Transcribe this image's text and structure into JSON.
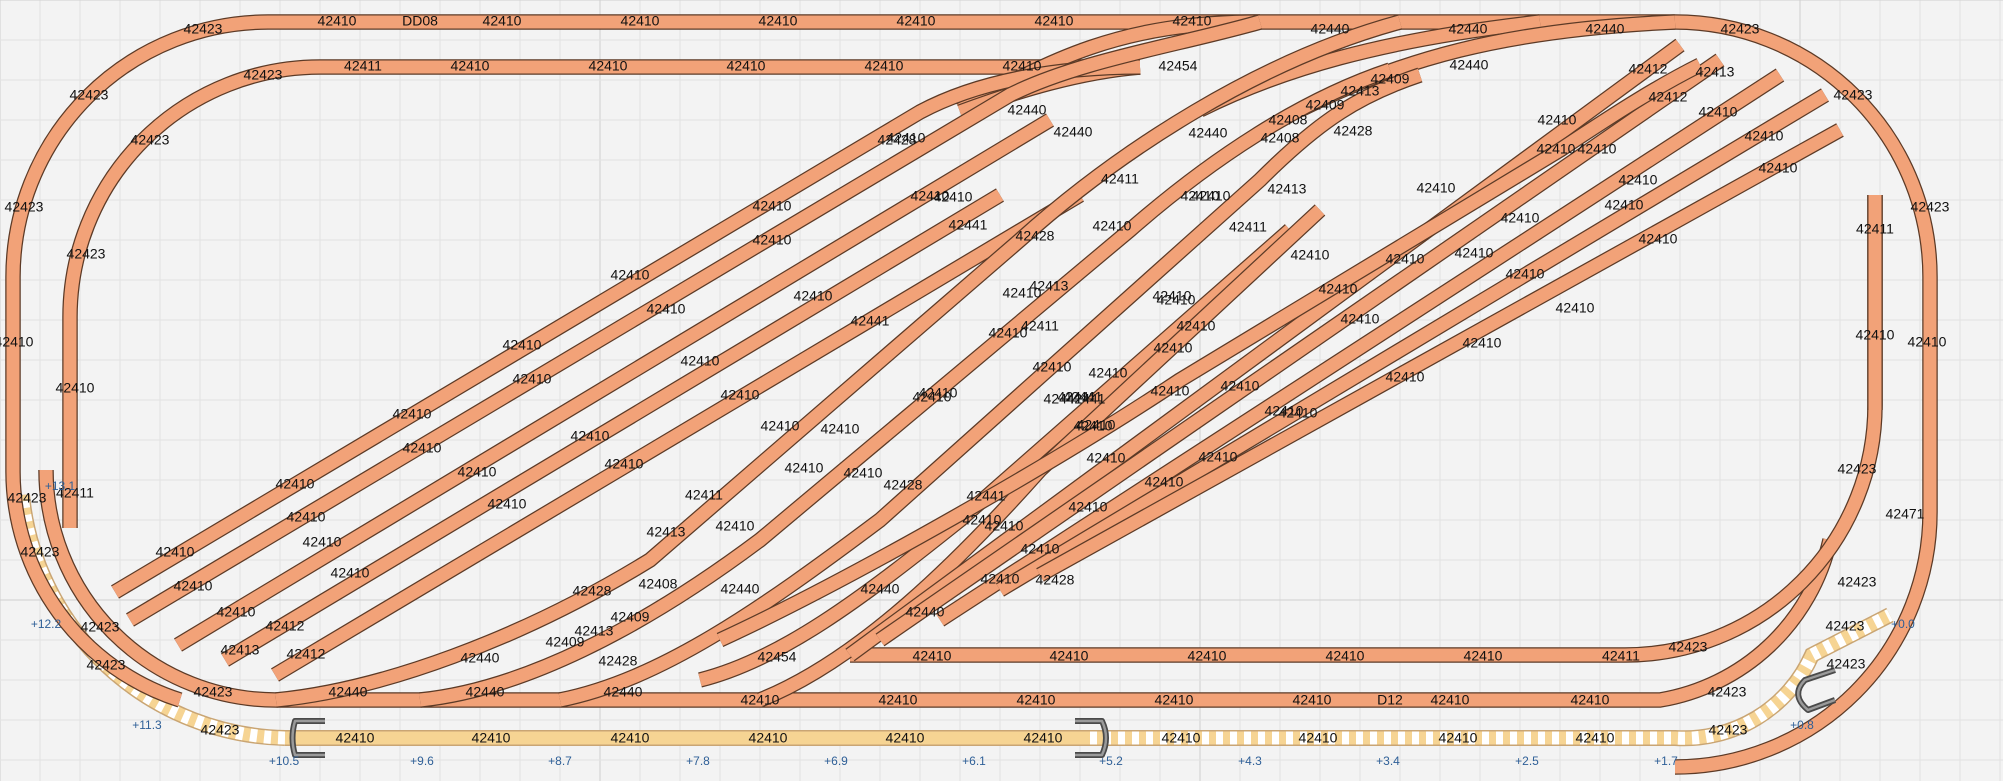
{
  "elevation_labels": [
    "+0.0",
    "+0.8",
    "+1.7",
    "+2.5",
    "+3.4",
    "+4.3",
    "+5.2",
    "+6.1",
    "+6.9",
    "+7.8",
    "+8.7",
    "+9.6",
    "+10.5",
    "+11.3",
    "+12.2",
    "+13.1"
  ],
  "codes": {
    "a": "42410",
    "b": "42423",
    "c": "42440",
    "d": "42411",
    "e": "42441",
    "f": "42428",
    "g": "42454",
    "h": "42409",
    "i": "42408",
    "j": "42413",
    "k": "42412",
    "l": "42471",
    "m": "D12",
    "n": "DD08"
  }
}
